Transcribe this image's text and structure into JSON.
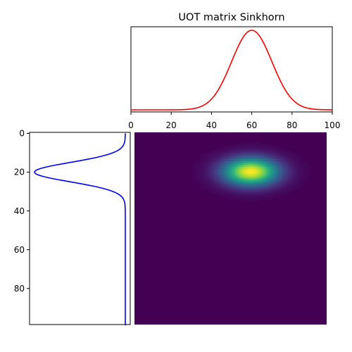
{
  "chart_data": [
    {
      "type": "line",
      "title": "UOT matrix Sinkhorn",
      "xlim": [
        0,
        100
      ],
      "xticks": [
        0,
        20,
        40,
        60,
        80,
        100
      ],
      "yticks_visible": false,
      "series": [
        {
          "color": "#ff0000",
          "distribution": "gaussian",
          "mean": 60,
          "std": 10,
          "baseline": 0.0,
          "peak": 1.0
        }
      ]
    },
    {
      "type": "line",
      "orientation": "vertical",
      "ylim": [
        99,
        0
      ],
      "yticks": [
        0,
        20,
        40,
        60,
        80
      ],
      "xticks_visible": false,
      "series": [
        {
          "color": "#0000ff",
          "distribution": "gaussian",
          "mean": 20,
          "std": 5,
          "baseline": 0.0,
          "peak": 1.0
        }
      ]
    },
    {
      "type": "heatmap",
      "colormap": "viridis",
      "rows": 100,
      "cols": 100,
      "peak_row": 20,
      "peak_col": 60,
      "row_std": 5,
      "col_std": 10
    }
  ],
  "title": "UOT matrix Sinkhorn",
  "top_ticks": [
    "0",
    "20",
    "40",
    "60",
    "80",
    "100"
  ],
  "left_ticks": [
    "0",
    "20",
    "40",
    "60",
    "80"
  ]
}
